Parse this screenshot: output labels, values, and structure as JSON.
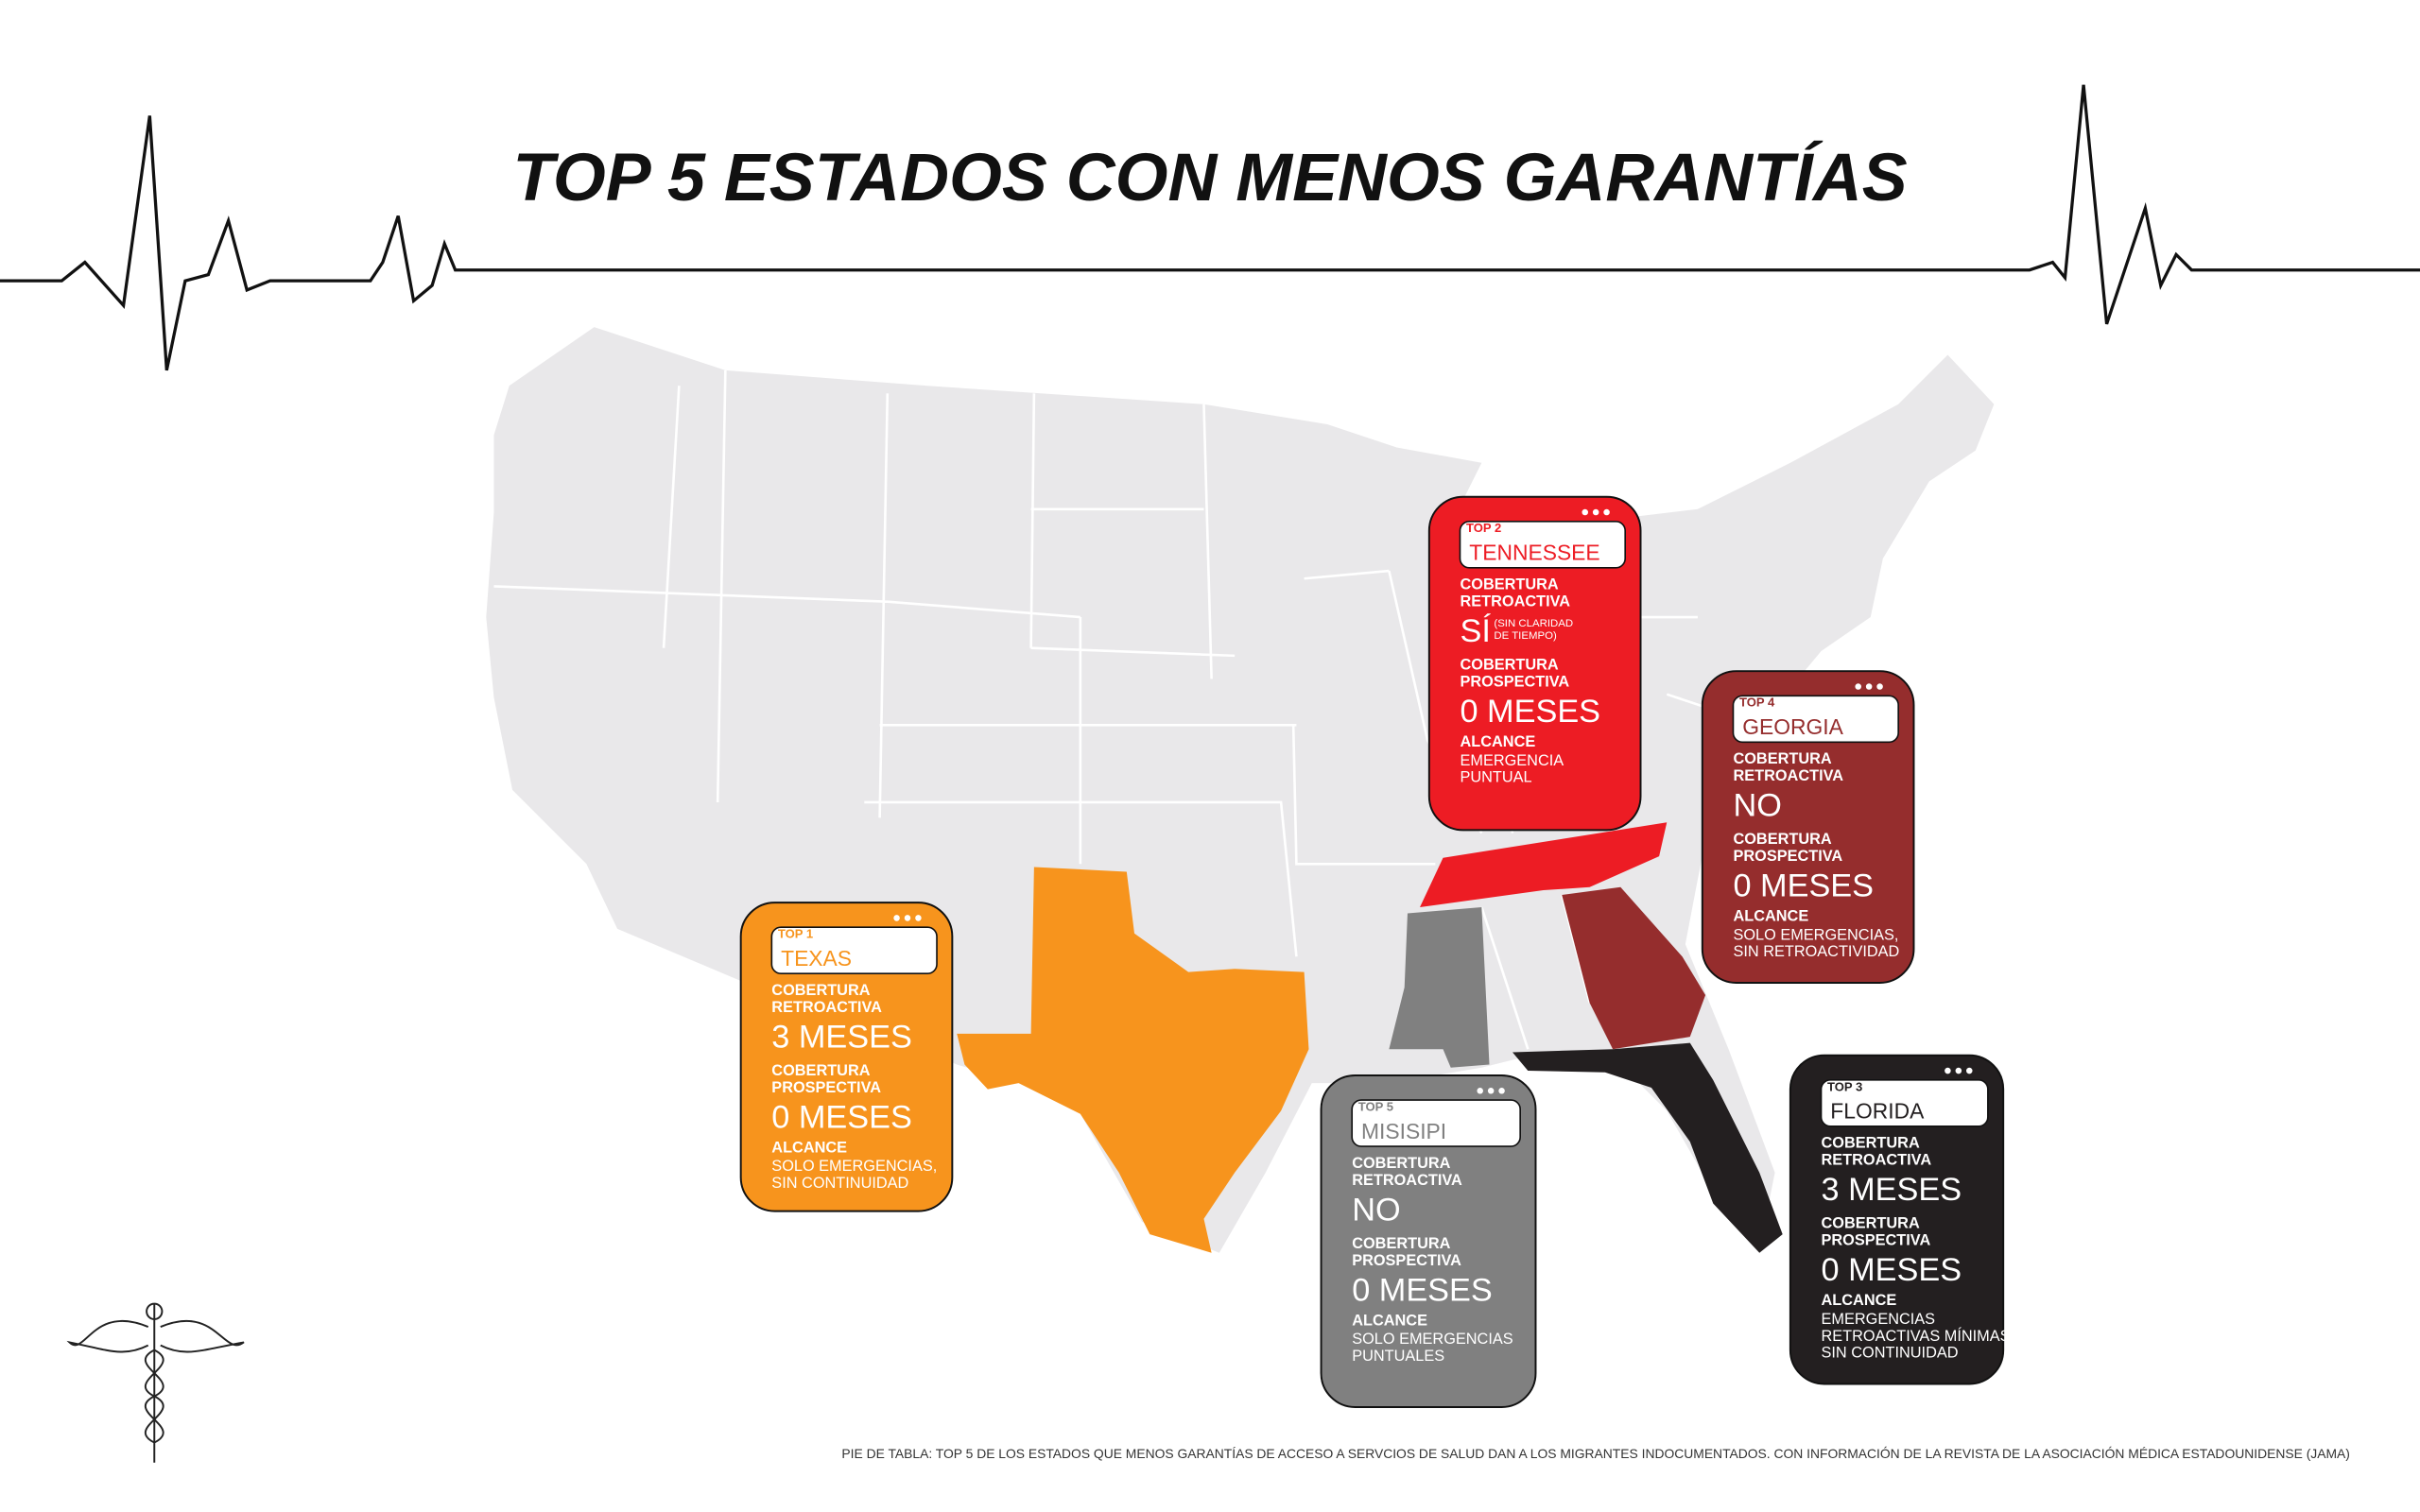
{
  "header": {
    "title": "TOP 5 ESTADOS CON MENOS GARANTÍAS"
  },
  "cards": [
    {
      "rank": "TOP 1",
      "state": "TEXAS",
      "color": "#f7941d",
      "retro_label": [
        "COBERTURA",
        "RETROACTIVA"
      ],
      "retro_value": "3 MESES",
      "prosp_label": [
        "COBERTURA",
        "PROSPECTIVA"
      ],
      "prosp_value": "0 MESES",
      "scope_label": "ALCANCE",
      "scope": [
        "SOLO EMERGENCIAS,",
        "SIN CONTINUIDAD"
      ]
    },
    {
      "rank": "TOP 2",
      "state": "TENNESSEE",
      "color": "#ed1c24",
      "retro_label": [
        "COBERTURA",
        "RETROACTIVA"
      ],
      "retro_value": "SÍ",
      "retro_note": [
        "(SIN CLARIDAD",
        "DE TIEMPO)"
      ],
      "prosp_label": [
        "COBERTURA",
        "PROSPECTIVA"
      ],
      "prosp_value": "0 MESES",
      "scope_label": "ALCANCE",
      "scope": [
        "EMERGENCIA",
        "PUNTUAL"
      ]
    },
    {
      "rank": "TOP 3",
      "state": "FLORIDA",
      "color": "#231f20",
      "retro_label": [
        "COBERTURA",
        "RETROACTIVA"
      ],
      "retro_value": "3 MESES",
      "prosp_label": [
        "COBERTURA",
        "PROSPECTIVA"
      ],
      "prosp_value": "0 MESES",
      "scope_label": "ALCANCE",
      "scope": [
        "EMERGENCIAS",
        "RETROACTIVAS MÍNIMAS,",
        "SIN CONTINUIDAD"
      ]
    },
    {
      "rank": "TOP 4",
      "state": "GEORGIA",
      "color": "#952d2d",
      "retro_label": [
        "COBERTURA",
        "RETROACTIVA"
      ],
      "retro_value": "NO",
      "prosp_label": [
        "COBERTURA",
        "PROSPECTIVA"
      ],
      "prosp_value": "0 MESES",
      "scope_label": "ALCANCE",
      "scope": [
        "SOLO EMERGENCIAS,",
        "SIN RETROACTIVIDAD"
      ]
    },
    {
      "rank": "TOP 5",
      "state": "MISISIPI",
      "color": "#808080",
      "retro_label": [
        "COBERTURA",
        "RETROACTIVA"
      ],
      "retro_value": "NO",
      "prosp_label": [
        "COBERTURA",
        "PROSPECTIVA"
      ],
      "prosp_value": "0 MESES",
      "scope_label": "ALCANCE",
      "scope": [
        "SOLO EMERGENCIAS",
        "PUNTUALES"
      ]
    }
  ],
  "caption": "PIE DE TABLA: TOP 5 DE LOS ESTADOS QUE MENOS GARANTÍAS DE ACCESO A SERVCIOS DE SALUD DAN A LOS MIGRANTES INDOCUMENTADOS. CON INFORMACIÓN DE LA REVISTA DE LA ASOCIACIÓN MÉDICA ESTADOUNIDENSE (JAMA)"
}
